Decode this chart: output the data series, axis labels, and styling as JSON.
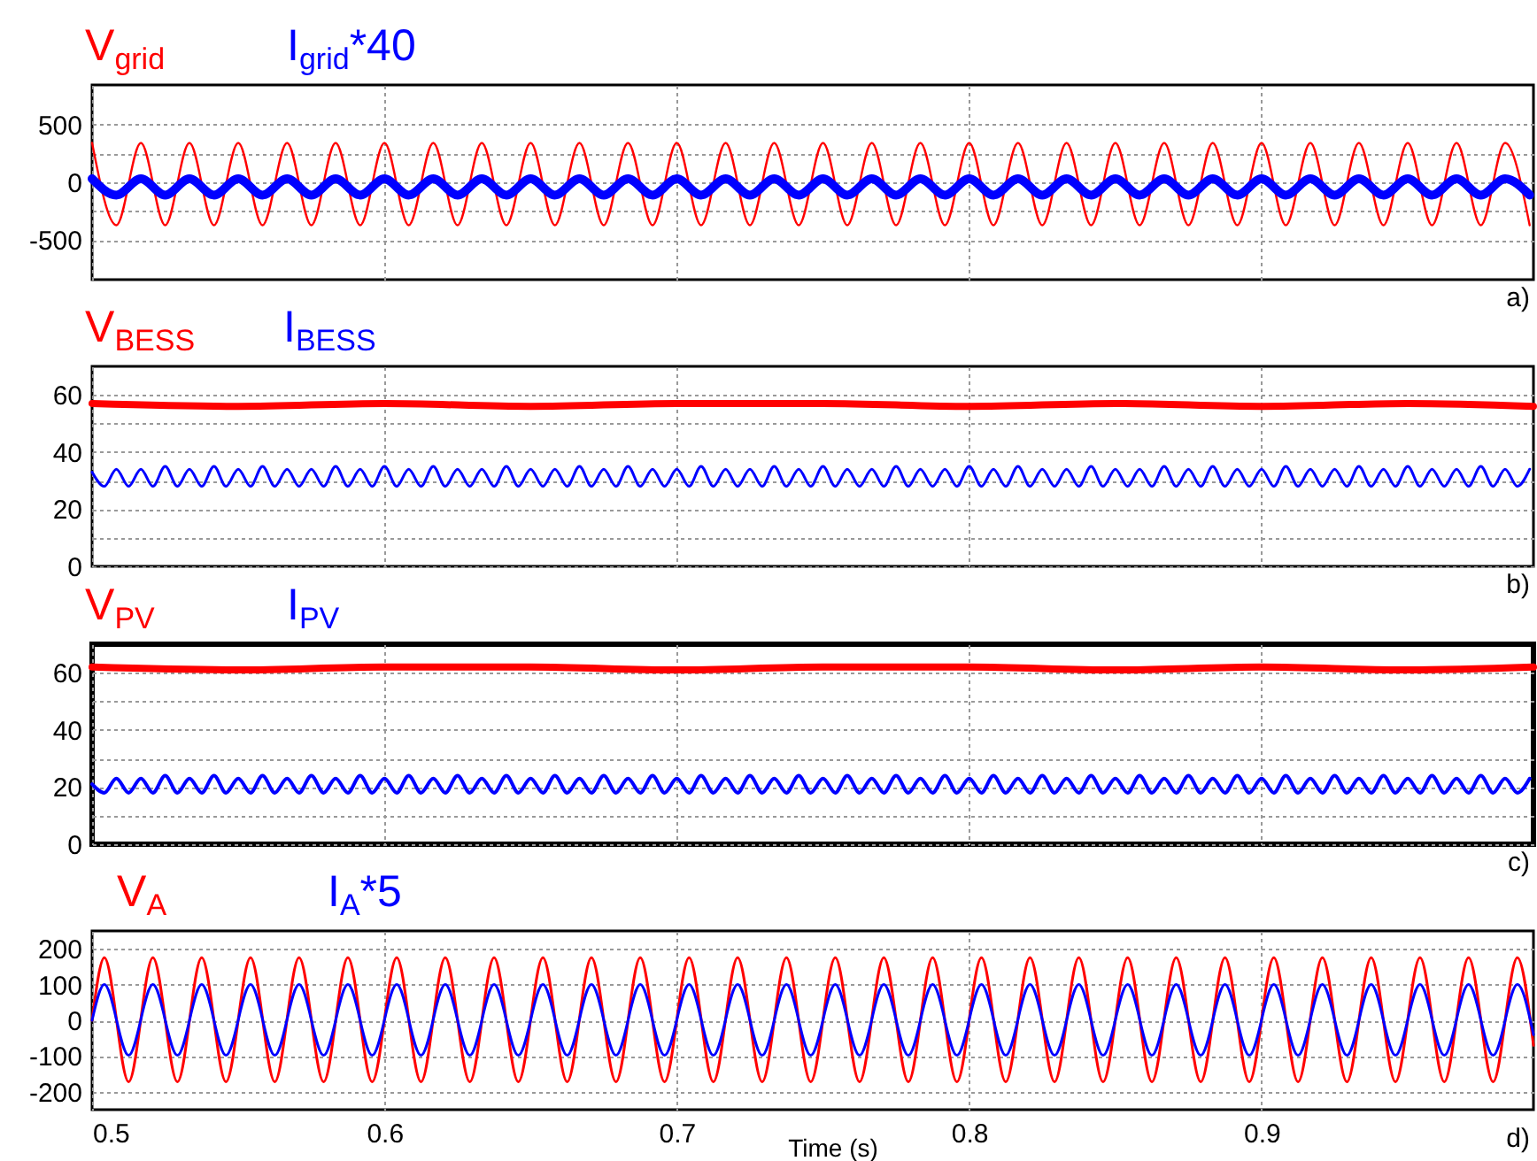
{
  "chart_data": [
    {
      "type": "line",
      "annotations": [
        "a)"
      ],
      "xlim": [
        0.5,
        0.993
      ],
      "xticks": [
        0.5,
        0.6,
        0.7,
        0.8,
        0.9
      ],
      "ylim": [
        -840,
        840
      ],
      "yticks": [
        -500,
        {
          "value": -250,
          "label": null
        },
        0,
        {
          "value": 250,
          "label": null
        },
        500
      ],
      "grid": true,
      "tick_labels": "y",
      "x": [
        0.5,
        0.5083,
        0.5167,
        0.525,
        0.5333,
        0.5417,
        0.55,
        0.5583,
        0.5667,
        0.575,
        0.5833,
        0.5917,
        0.6,
        0.6083,
        0.6167,
        0.625,
        0.6333,
        0.6417,
        0.65,
        0.6583,
        0.6667,
        0.675,
        0.6833,
        0.6917,
        0.7,
        0.7083,
        0.7167,
        0.725,
        0.7333,
        0.7417,
        0.75,
        0.7583,
        0.7667,
        0.775,
        0.7833,
        0.7917,
        0.8,
        0.8083,
        0.8167,
        0.825,
        0.8333,
        0.8417,
        0.85,
        0.8583,
        0.8667,
        0.875,
        0.8833,
        0.8917,
        0.9,
        0.9083,
        0.9167,
        0.925,
        0.9333,
        0.9417,
        0.95,
        0.9583,
        0.9667,
        0.975,
        0.9833,
        0.9917
      ],
      "series": [
        {
          "name": "V$_{grid}$",
          "color": "#ff0000",
          "values": [
            340,
            -370,
            340,
            -370,
            340,
            -370,
            340,
            -370,
            340,
            -370,
            340,
            -370,
            340,
            -370,
            340,
            -370,
            340,
            -370,
            340,
            -370,
            340,
            -370,
            340,
            -370,
            340,
            -370,
            340,
            -370,
            340,
            -370,
            340,
            -370,
            340,
            -370,
            340,
            -370,
            340,
            -370,
            340,
            -370,
            340,
            -370,
            340,
            -370,
            340,
            -370,
            340,
            -370,
            340,
            -370,
            340,
            -370,
            340,
            -370,
            340,
            -370,
            340,
            -370,
            340,
            -370
          ]
        },
        {
          "name": "I$_{grid}$*40",
          "color": "#0000ff",
          "values": [
            30,
            -110,
            30,
            -110,
            30,
            -110,
            30,
            -110,
            30,
            -110,
            30,
            -110,
            30,
            -110,
            30,
            -110,
            30,
            -110,
            30,
            -110,
            30,
            -110,
            30,
            -110,
            30,
            -110,
            30,
            -110,
            30,
            -110,
            30,
            -110,
            30,
            -110,
            30,
            -110,
            30,
            -110,
            30,
            -110,
            30,
            -110,
            30,
            -110,
            30,
            -110,
            30,
            -110,
            30,
            -110,
            30,
            -110,
            30,
            -110,
            30,
            -110,
            30,
            -110,
            30,
            -110
          ]
        }
      ]
    },
    {
      "type": "line",
      "annotations": [
        "b)"
      ],
      "xlim": [
        0.5,
        0.993
      ],
      "xticks": [
        0.5,
        0.6,
        0.7,
        0.8,
        0.9
      ],
      "ylim": [
        0,
        70
      ],
      "yticks": [
        0,
        {
          "value": 10,
          "label": null
        },
        20,
        {
          "value": 30,
          "label": null
        },
        40,
        {
          "value": 50,
          "label": null
        },
        60
      ],
      "grid": true,
      "tick_labels": "y",
      "x": [
        0.5,
        0.5042,
        0.5083,
        0.5125,
        0.5167,
        0.5208,
        0.525,
        0.5292,
        0.5333,
        0.5375,
        0.5417,
        0.5458,
        0.55,
        0.5542,
        0.5583,
        0.5625,
        0.5667,
        0.5708,
        0.575,
        0.5792,
        0.5833,
        0.5875,
        0.5917,
        0.5958,
        0.6,
        0.6042,
        0.6083,
        0.6125,
        0.6167,
        0.6208,
        0.625,
        0.6292,
        0.6333,
        0.6375,
        0.6417,
        0.6458,
        0.65,
        0.6542,
        0.6583,
        0.6625,
        0.6667,
        0.6708,
        0.675,
        0.6792,
        0.6833,
        0.6875,
        0.6917,
        0.6958,
        0.7,
        0.7042,
        0.7083,
        0.7125,
        0.7167,
        0.7208,
        0.725,
        0.7292,
        0.7333,
        0.7375,
        0.7417,
        0.7458,
        0.75,
        0.7542,
        0.7583,
        0.7625,
        0.7667,
        0.7708,
        0.775,
        0.7792,
        0.7833,
        0.7875,
        0.7917,
        0.7958,
        0.8,
        0.8042,
        0.8083,
        0.8125,
        0.8167,
        0.8208,
        0.825,
        0.8292,
        0.8333,
        0.8375,
        0.8417,
        0.8458,
        0.85,
        0.8542,
        0.8583,
        0.8625,
        0.8667,
        0.8708,
        0.875,
        0.8792,
        0.8833,
        0.8875,
        0.8917,
        0.8958,
        0.9,
        0.9042,
        0.9083,
        0.9125,
        0.9167,
        0.9208,
        0.925,
        0.9292,
        0.9333,
        0.9375,
        0.9417,
        0.9458,
        0.95,
        0.9542,
        0.9583,
        0.9625,
        0.9667,
        0.9708,
        0.975,
        0.9792,
        0.9833,
        0.9875,
        0.9917
      ],
      "series": [
        {
          "name": "V$_{BESS}$",
          "color": "#ff0000",
          "x": [
            0.5,
            0.55,
            0.6,
            0.65,
            0.7,
            0.75,
            0.8,
            0.85,
            0.9,
            0.95,
            0.993
          ],
          "values": [
            57,
            56,
            57,
            56,
            57,
            57,
            56,
            57,
            56,
            57,
            56
          ]
        },
        {
          "name": "I$_{BESS}$",
          "color": "#0000ff",
          "values": [
            33,
            28,
            34,
            28,
            34,
            28,
            35,
            28,
            34,
            28,
            35,
            28,
            34,
            28,
            35,
            28,
            34,
            28,
            34,
            28,
            35,
            28,
            34,
            28,
            35,
            28,
            34,
            28,
            35,
            28,
            34,
            28,
            34,
            28,
            35,
            28,
            34,
            28,
            34,
            28,
            35,
            28,
            34,
            28,
            35,
            28,
            34,
            28,
            34,
            28,
            35,
            28,
            34,
            28,
            34,
            28,
            35,
            28,
            34,
            28,
            35,
            28,
            34,
            28,
            34,
            28,
            35,
            28,
            34,
            28,
            34,
            28,
            35,
            28,
            34,
            28,
            35,
            28,
            34,
            28,
            34,
            28,
            35,
            28,
            34,
            28,
            34,
            28,
            35,
            28,
            34,
            28,
            35,
            28,
            34,
            28,
            34,
            28,
            35,
            28,
            34,
            28,
            34,
            28,
            35,
            28,
            34,
            28,
            35,
            28,
            34,
            28,
            34,
            28,
            35,
            28,
            34,
            28,
            34
          ]
        }
      ]
    },
    {
      "type": "line",
      "annotations": [
        "c)"
      ],
      "xlim": [
        0.5,
        0.993
      ],
      "xticks": [
        0.5,
        0.6,
        0.7,
        0.8,
        0.9
      ],
      "ylim": [
        0,
        70
      ],
      "yticks": [
        0,
        {
          "value": 10,
          "label": null
        },
        20,
        {
          "value": 30,
          "label": null
        },
        40,
        {
          "value": 50,
          "label": null
        },
        60
      ],
      "grid": true,
      "tick_labels": "y",
      "x": [
        0.5,
        0.5042,
        0.5083,
        0.5125,
        0.5167,
        0.5208,
        0.525,
        0.5292,
        0.5333,
        0.5375,
        0.5417,
        0.5458,
        0.55,
        0.5542,
        0.5583,
        0.5625,
        0.5667,
        0.5708,
        0.575,
        0.5792,
        0.5833,
        0.5875,
        0.5917,
        0.5958,
        0.6,
        0.6042,
        0.6083,
        0.6125,
        0.6167,
        0.6208,
        0.625,
        0.6292,
        0.6333,
        0.6375,
        0.6417,
        0.6458,
        0.65,
        0.6542,
        0.6583,
        0.6625,
        0.6667,
        0.6708,
        0.675,
        0.6792,
        0.6833,
        0.6875,
        0.6917,
        0.6958,
        0.7,
        0.7042,
        0.7083,
        0.7125,
        0.7167,
        0.7208,
        0.725,
        0.7292,
        0.7333,
        0.7375,
        0.7417,
        0.7458,
        0.75,
        0.7542,
        0.7583,
        0.7625,
        0.7667,
        0.7708,
        0.775,
        0.7792,
        0.7833,
        0.7875,
        0.7917,
        0.7958,
        0.8,
        0.8042,
        0.8083,
        0.8125,
        0.8167,
        0.8208,
        0.825,
        0.8292,
        0.8333,
        0.8375,
        0.8417,
        0.8458,
        0.85,
        0.8542,
        0.8583,
        0.8625,
        0.8667,
        0.8708,
        0.875,
        0.8792,
        0.8833,
        0.8875,
        0.8917,
        0.8958,
        0.9,
        0.9042,
        0.9083,
        0.9125,
        0.9167,
        0.9208,
        0.925,
        0.9292,
        0.9333,
        0.9375,
        0.9417,
        0.9458,
        0.95,
        0.9542,
        0.9583,
        0.9625,
        0.9667,
        0.9708,
        0.975,
        0.9792,
        0.9833,
        0.9875,
        0.9917
      ],
      "series": [
        {
          "name": "V$_{PV}$",
          "color": "#ff0000",
          "x": [
            0.5,
            0.55,
            0.6,
            0.65,
            0.7,
            0.75,
            0.8,
            0.85,
            0.9,
            0.95,
            0.993
          ],
          "values": [
            62,
            61,
            62,
            62,
            61,
            62,
            62,
            61,
            62,
            61,
            62
          ]
        },
        {
          "name": "I$_{PV}$",
          "color": "#0000ff",
          "values": [
            21,
            18,
            23,
            18,
            23,
            18,
            24,
            18,
            23,
            18,
            24,
            18,
            23,
            18,
            24,
            18,
            23,
            18,
            24,
            18,
            23,
            18,
            24,
            18,
            23,
            18,
            24,
            18,
            23,
            18,
            24,
            18,
            23,
            18,
            24,
            18,
            23,
            18,
            24,
            18,
            23,
            18,
            24,
            18,
            23,
            18,
            24,
            18,
            23,
            18,
            24,
            18,
            23,
            18,
            24,
            18,
            23,
            18,
            24,
            18,
            23,
            18,
            24,
            18,
            23,
            18,
            24,
            18,
            23,
            18,
            24,
            18,
            23,
            18,
            24,
            18,
            23,
            18,
            24,
            18,
            23,
            18,
            24,
            18,
            23,
            18,
            24,
            18,
            23,
            18,
            24,
            18,
            23,
            18,
            24,
            18,
            23,
            18,
            24,
            18,
            23,
            18,
            24,
            18,
            23,
            18,
            24,
            18,
            23,
            18,
            24,
            18,
            23,
            18,
            24,
            18,
            23,
            18,
            23
          ]
        }
      ]
    },
    {
      "type": "line",
      "annotations": [
        "d)"
      ],
      "xlabel": "Time (s)",
      "xlim": [
        0.5,
        0.993
      ],
      "xticks": [
        0.5,
        0.6,
        0.7,
        0.8,
        0.9
      ],
      "ylim": [
        -250,
        250
      ],
      "yticks": [
        -200,
        -100,
        0,
        100,
        200
      ],
      "grid": true,
      "x": [
        0.5,
        0.5042,
        0.5125,
        0.5208,
        0.5292,
        0.5375,
        0.5458,
        0.5542,
        0.5625,
        0.5708,
        0.5792,
        0.5875,
        0.5958,
        0.6042,
        0.6125,
        0.6208,
        0.6292,
        0.6375,
        0.6458,
        0.6542,
        0.6625,
        0.6708,
        0.6792,
        0.6875,
        0.6958,
        0.7042,
        0.7125,
        0.7208,
        0.7292,
        0.7375,
        0.7458,
        0.7542,
        0.7625,
        0.7708,
        0.7792,
        0.7875,
        0.7958,
        0.8042,
        0.8125,
        0.8208,
        0.8292,
        0.8375,
        0.8458,
        0.8542,
        0.8625,
        0.8708,
        0.8792,
        0.8875,
        0.8958,
        0.9042,
        0.9125,
        0.9208,
        0.9292,
        0.9375,
        0.9458,
        0.9542,
        0.9625,
        0.9708,
        0.9792,
        0.9875,
        0.993
      ],
      "series": [
        {
          "name": "V$_{A}$",
          "color": "#ff0000",
          "values": [
            0,
            175,
            -172,
            175,
            -172,
            175,
            -172,
            175,
            -172,
            175,
            -172,
            175,
            -172,
            175,
            -172,
            175,
            -172,
            175,
            -172,
            175,
            -172,
            175,
            -172,
            175,
            -172,
            175,
            -172,
            175,
            -172,
            175,
            -172,
            175,
            -172,
            175,
            -172,
            175,
            -172,
            175,
            -172,
            175,
            -172,
            175,
            -172,
            175,
            -172,
            175,
            -172,
            175,
            -172,
            175,
            -172,
            175,
            -172,
            175,
            -172,
            175,
            -172,
            175,
            -172,
            175,
            -70
          ]
        },
        {
          "name": "I$_{A}$*5",
          "color": "#0000ff",
          "values": [
            0,
            100,
            -98,
            100,
            -98,
            100,
            -98,
            100,
            -98,
            100,
            -98,
            100,
            -98,
            100,
            -98,
            100,
            -98,
            100,
            -98,
            100,
            -98,
            100,
            -98,
            100,
            -98,
            100,
            -98,
            100,
            -98,
            100,
            -98,
            100,
            -98,
            100,
            -98,
            100,
            -98,
            100,
            -98,
            100,
            -98,
            100,
            -98,
            100,
            -98,
            100,
            -98,
            100,
            -98,
            100,
            -98,
            100,
            -98,
            100,
            -98,
            100,
            -98,
            100,
            -98,
            100,
            -40
          ]
        }
      ]
    }
  ]
}
